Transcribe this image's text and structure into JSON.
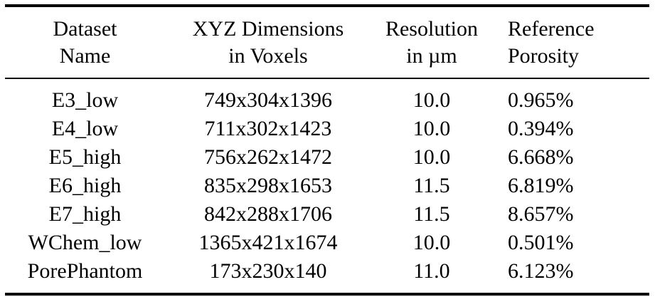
{
  "table": {
    "headers": [
      [
        "Dataset",
        "Name"
      ],
      [
        "XYZ Dimensions",
        "in Voxels"
      ],
      [
        "Resolution",
        "in µm"
      ],
      [
        "Reference",
        "Porosity"
      ]
    ],
    "rows": [
      [
        "E3_low",
        "749x304x1396",
        "10.0",
        "0.965%"
      ],
      [
        "E4_low",
        "711x302x1423",
        "10.0",
        "0.394%"
      ],
      [
        "E5_high",
        "756x262x1472",
        "10.0",
        "6.668%"
      ],
      [
        "E6_high",
        "835x298x1653",
        "11.5",
        "6.819%"
      ],
      [
        "E7_high",
        "842x288x1706",
        "11.5",
        "8.657%"
      ],
      [
        "WChem_low",
        "1365x421x1674",
        "10.0",
        "0.501%"
      ],
      [
        "PorePhantom",
        "173x230x140",
        "11.0",
        "6.123%"
      ]
    ]
  }
}
